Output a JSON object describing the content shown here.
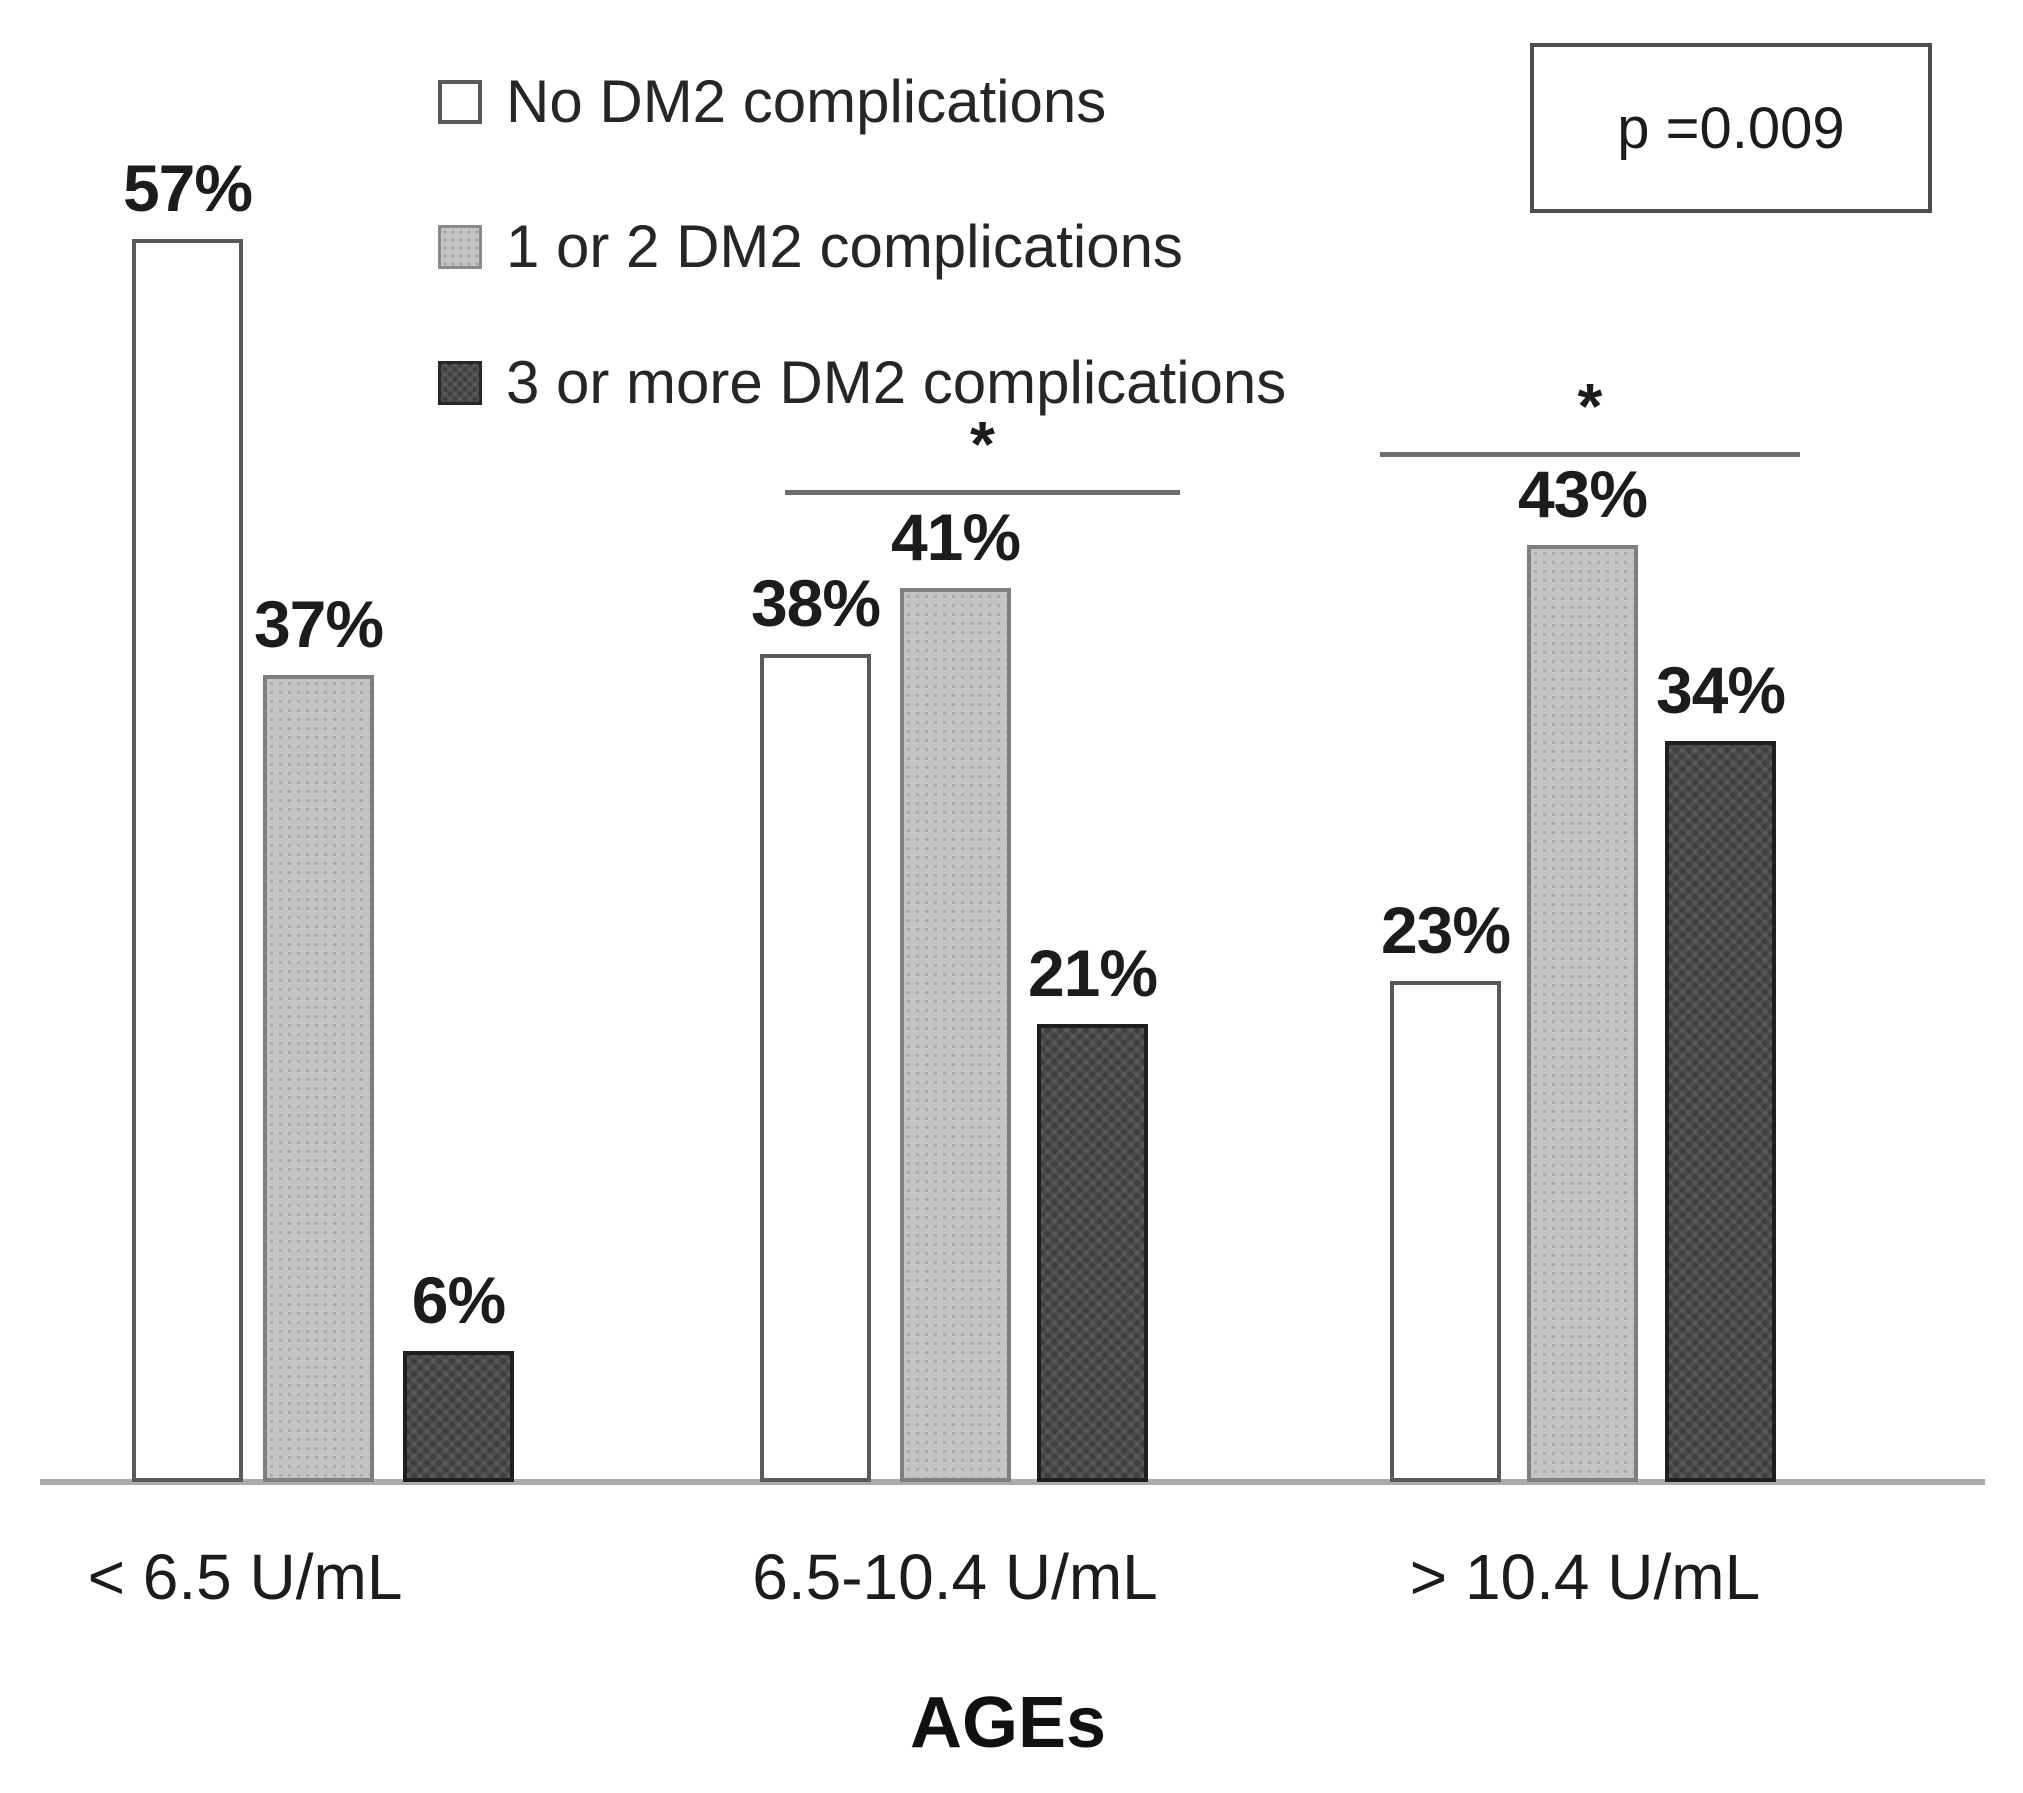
{
  "figure": {
    "p_value_label": "p =0.009",
    "xlabel": "AGEs"
  },
  "legend": {
    "items": [
      {
        "label": "No DM2 complications",
        "swatch": "white"
      },
      {
        "label": "1 or 2 DM2 complications",
        "swatch": "light-gray"
      },
      {
        "label": "3 or more DM2 complications",
        "swatch": "dark-gray"
      }
    ]
  },
  "chart_data": {
    "type": "bar",
    "categories": [
      "< 6.5 U/mL",
      "6.5-10.4 U/mL",
      "> 10.4 U/mL"
    ],
    "series": [
      {
        "name": "No DM2 complications",
        "values": [
          57,
          38,
          23
        ]
      },
      {
        "name": "1 or 2 DM2 complications",
        "values": [
          37,
          41,
          43
        ]
      },
      {
        "name": "3 or more DM2 complications",
        "values": [
          6,
          21,
          34
        ]
      }
    ],
    "value_label_format": "{v}%",
    "title": "",
    "xlabel": "AGEs",
    "ylabel": "",
    "ylim": [
      0,
      60
    ],
    "grid": false,
    "legend_position": "top-left",
    "annotations": {
      "p_value": "p =0.009",
      "significance": [
        {
          "category": "6.5-10.4 U/mL",
          "marker": "*"
        },
        {
          "category": "> 10.4 U/mL",
          "marker": "*"
        }
      ]
    }
  },
  "colors": {
    "bar_white_fill": "#ffffff",
    "bar_white_border": "#595959",
    "bar_light_fill": "#c4c4c4",
    "bar_light_border": "#7f7f7f",
    "bar_dark_fill": "#3f3f3f",
    "bar_dark_border": "#1f1f1f",
    "axis_line": "#ababab",
    "sig_line": "#6e6e6e",
    "text": "#1c1c1c"
  }
}
